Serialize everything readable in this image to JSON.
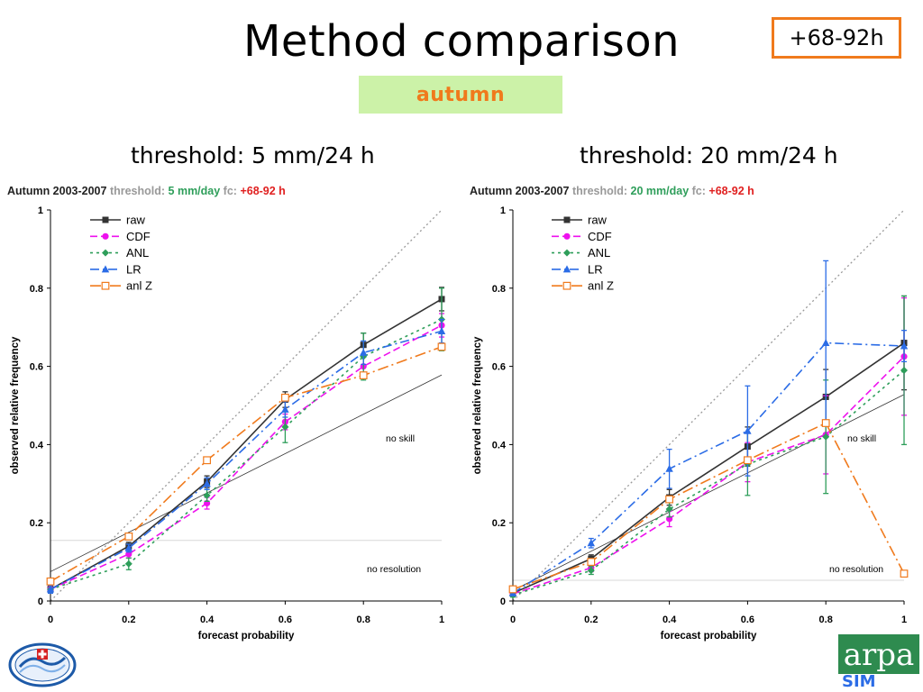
{
  "slide": {
    "title": "Method comparison",
    "horizon_badge": "+68-92h",
    "season_label": "autumn",
    "left_threshold": "threshold: 5 mm/24 h",
    "right_threshold": "threshold: 20 mm/24 h",
    "colors": {
      "accent": "#f07a1c",
      "season_bg": "#ccf2a8"
    },
    "logos": {
      "left": "arpa-piemonte-emblem",
      "right": "arpa-sim-logo",
      "right_text": "arpa",
      "right_sub": "SIM"
    }
  },
  "chart_data": [
    {
      "type": "line",
      "title_parts": [
        "Autumn 2003-2007",
        " threshold: ",
        "5 mm/day",
        " fc: ",
        "+68-92 h"
      ],
      "xlabel": "forecast probability",
      "ylabel": "observed relative frequency",
      "xlim": [
        0,
        1
      ],
      "ylim": [
        0,
        1
      ],
      "xticks": [
        "0",
        "0.2",
        "0.4",
        "0.6",
        "0.8",
        "1"
      ],
      "yticks": [
        "0",
        "0.2",
        "0.4",
        "0.6",
        "0.8",
        "1"
      ],
      "grid": false,
      "legend": "top-left",
      "annotations": {
        "no_skill": "no skill",
        "no_resolution": "no resolution",
        "no_skill_line": [
          [
            0,
            0.075
          ],
          [
            1,
            0.578
          ]
        ],
        "no_resolution_y": 0.155
      },
      "diagonal": [
        [
          0,
          0
        ],
        [
          1,
          1
        ]
      ],
      "x": [
        0,
        0.2,
        0.4,
        0.6,
        0.8,
        1
      ],
      "series": [
        {
          "name": "raw",
          "color": "#333333",
          "marker": "square",
          "dash": "",
          "values": [
            0.03,
            0.14,
            0.305,
            0.515,
            0.655,
            0.772
          ],
          "err": [
            0.01,
            0.01,
            0.015,
            0.02,
            0.03,
            0.03
          ]
        },
        {
          "name": "CDF",
          "color": "#ee11ee",
          "marker": "circle",
          "dash": "8,4",
          "values": [
            0.03,
            0.12,
            0.25,
            0.458,
            0.6,
            0.705
          ],
          "err": [
            0.01,
            0.01,
            0.015,
            0.02,
            0.03,
            0.03
          ]
        },
        {
          "name": "ANL",
          "color": "#2e9e5a",
          "marker": "diamond",
          "dash": "3,4",
          "values": [
            0.03,
            0.095,
            0.27,
            0.445,
            0.625,
            0.72
          ],
          "err": [
            0.01,
            0.015,
            0.015,
            0.04,
            0.06,
            0.08
          ]
        },
        {
          "name": "LR",
          "color": "#2b6ce6",
          "marker": "triangle",
          "dash": "10,4,2,4",
          "values": [
            0.03,
            0.135,
            0.3,
            0.49,
            0.635,
            0.69
          ],
          "err": [
            0.01,
            0.01,
            0.015,
            0.02,
            0.03,
            0.03
          ]
        },
        {
          "name": "anl Z",
          "color": "#f07a1c",
          "marker": "opensquare",
          "dash": "12,4,2,4",
          "values": [
            0.05,
            0.165,
            0.36,
            0.52,
            0.577,
            0.65
          ],
          "err": [
            0,
            0,
            0,
            0,
            0,
            0
          ]
        }
      ]
    },
    {
      "type": "line",
      "title_parts": [
        "Autumn 2003-2007",
        " threshold: ",
        "20 mm/day",
        " fc: ",
        "+68-92 h"
      ],
      "xlabel": "forecast probability",
      "ylabel": "observed relative frequency",
      "xlim": [
        0,
        1
      ],
      "ylim": [
        0,
        1
      ],
      "xticks": [
        "0",
        "0.2",
        "0.4",
        "0.6",
        "0.8",
        "1"
      ],
      "yticks": [
        "0",
        "0.2",
        "0.4",
        "0.6",
        "0.8",
        "1"
      ],
      "grid": false,
      "legend": "top-left",
      "annotations": {
        "no_skill": "no skill",
        "no_resolution": "no resolution",
        "no_skill_line": [
          [
            0,
            0.027
          ],
          [
            1,
            0.528
          ]
        ],
        "no_resolution_y": 0.053
      },
      "diagonal": [
        [
          0,
          0
        ],
        [
          1,
          1
        ]
      ],
      "x": [
        0,
        0.2,
        0.4,
        0.6,
        0.8,
        1
      ],
      "series": [
        {
          "name": "raw",
          "color": "#333333",
          "marker": "square",
          "dash": "",
          "values": [
            0.02,
            0.108,
            0.265,
            0.395,
            0.522,
            0.66
          ],
          "err": [
            0.005,
            0.01,
            0.02,
            0.05,
            0.07,
            0.12
          ]
        },
        {
          "name": "CDF",
          "color": "#ee11ee",
          "marker": "circle",
          "dash": "8,4",
          "values": [
            0.018,
            0.085,
            0.21,
            0.355,
            0.425,
            0.625
          ],
          "err": [
            0.005,
            0.01,
            0.02,
            0.05,
            0.1,
            0.15
          ]
        },
        {
          "name": "ANL",
          "color": "#2e9e5a",
          "marker": "diamond",
          "dash": "3,4",
          "values": [
            0.015,
            0.078,
            0.235,
            0.35,
            0.42,
            0.59
          ],
          "err": [
            0.005,
            0.01,
            0.02,
            0.08,
            0.145,
            0.19
          ]
        },
        {
          "name": "LR",
          "color": "#2b6ce6",
          "marker": "triangle",
          "dash": "10,4,2,4",
          "values": [
            0.02,
            0.148,
            0.338,
            0.435,
            0.66,
            0.652
          ],
          "err": [
            0.005,
            0.012,
            0.05,
            0.115,
            0.21,
            0.04
          ]
        },
        {
          "name": "anl Z",
          "color": "#f07a1c",
          "marker": "opensquare",
          "dash": "12,4,2,4",
          "values": [
            0.03,
            0.1,
            0.26,
            0.36,
            0.455,
            0.07
          ],
          "err": [
            0,
            0,
            0,
            0,
            0,
            0
          ]
        }
      ]
    }
  ]
}
